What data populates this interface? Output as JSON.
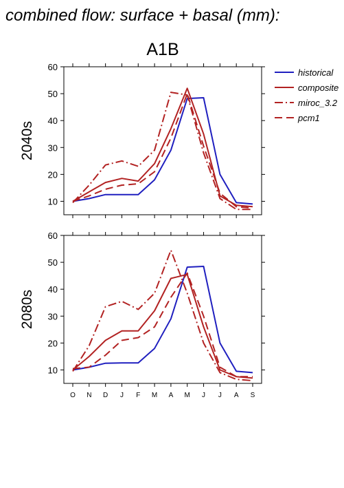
{
  "title": "combined flow: surface + basal (mm):",
  "subtitle": "A1B",
  "colors": {
    "historical": "#1f1fbf",
    "model": "#b22222",
    "axis": "#000000"
  },
  "legend": [
    {
      "name": "historical",
      "style": "solid",
      "color": "#1f1fbf"
    },
    {
      "name": "composite",
      "style": "solid",
      "color": "#b22222"
    },
    {
      "name": "miroc_3.2",
      "style": "dashdot",
      "color": "#b22222"
    },
    {
      "name": "pcm1",
      "style": "dash",
      "color": "#b22222"
    }
  ],
  "chart_data": [
    {
      "type": "line",
      "ylabel": "2040s",
      "ylim": [
        5,
        60
      ],
      "yticks": [
        10,
        20,
        30,
        40,
        50,
        60
      ],
      "categories": [
        "O",
        "N",
        "D",
        "J",
        "F",
        "M",
        "A",
        "M",
        "J",
        "J",
        "A",
        "S"
      ],
      "series": [
        {
          "name": "historical",
          "style": "solid",
          "values": [
            10,
            11,
            12.5,
            12.5,
            12.5,
            18,
            29,
            48.2,
            48.5,
            20,
            9.5,
            9
          ]
        },
        {
          "name": "composite",
          "style": "solid",
          "values": [
            10,
            13.5,
            17,
            18.5,
            17.5,
            24,
            37,
            52,
            35,
            12,
            8.5,
            8
          ]
        },
        {
          "name": "miroc_3.2",
          "style": "dashdot",
          "values": [
            9.5,
            16,
            23.5,
            25,
            23,
            29,
            50.5,
            49.5,
            28,
            11,
            7,
            7
          ]
        },
        {
          "name": "pcm1",
          "style": "dash",
          "values": [
            10,
            12,
            14.5,
            16,
            16.5,
            21,
            33.5,
            50,
            30.5,
            13,
            8,
            7.5
          ]
        }
      ],
      "xlabel": ""
    },
    {
      "type": "line",
      "ylabel": "2080s",
      "ylim": [
        5,
        60
      ],
      "yticks": [
        10,
        20,
        30,
        40,
        50,
        60
      ],
      "categories": [
        "O",
        "N",
        "D",
        "J",
        "F",
        "M",
        "A",
        "M",
        "J",
        "J",
        "A",
        "S"
      ],
      "series": [
        {
          "name": "historical",
          "style": "solid",
          "values": [
            10,
            11,
            12.5,
            12.6,
            12.6,
            18,
            29,
            48.2,
            48.5,
            20,
            9.5,
            9
          ]
        },
        {
          "name": "composite",
          "style": "solid",
          "values": [
            10,
            15,
            21,
            24.5,
            24.5,
            32,
            44,
            45.5,
            26,
            10,
            7.5,
            7
          ]
        },
        {
          "name": "miroc_3.2",
          "style": "dashdot",
          "values": [
            9.5,
            19,
            33.5,
            35.5,
            32.5,
            38.5,
            54.5,
            38.5,
            20,
            9,
            6.5,
            6
          ]
        },
        {
          "name": "pcm1",
          "style": "dash",
          "values": [
            10.5,
            11,
            15.5,
            21,
            22,
            26,
            37,
            46,
            30,
            11,
            7.5,
            7.5
          ]
        }
      ],
      "xlabel": ""
    }
  ]
}
